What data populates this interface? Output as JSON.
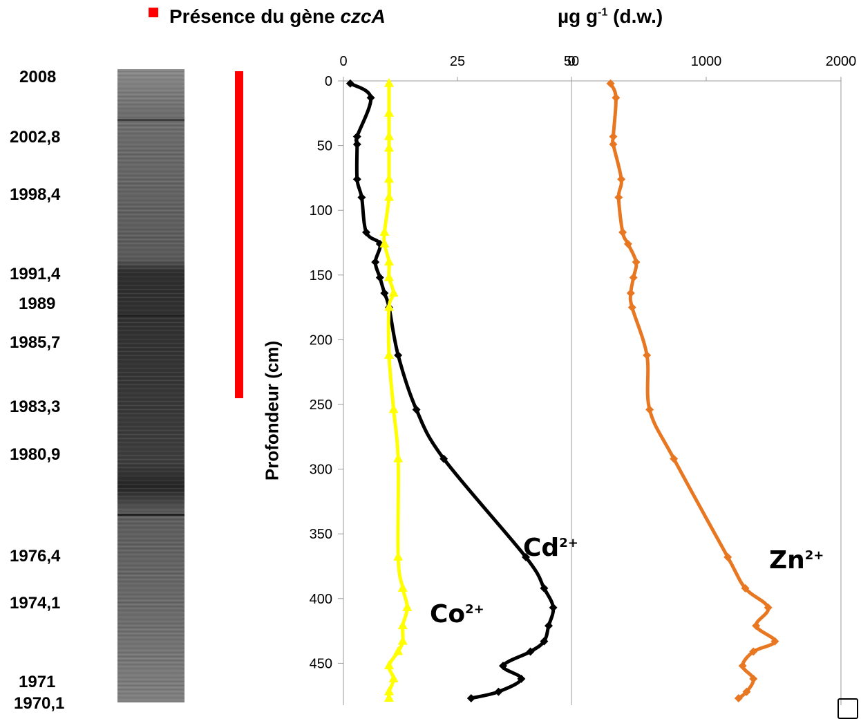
{
  "legend": {
    "label_prefix": "Présence du  gène ",
    "label_gene": "czcA",
    "color": "#ff0000"
  },
  "units": {
    "prefix": "µg g",
    "sup": "-1",
    "suffix": " (d.w.)"
  },
  "core_years": [
    "2008",
    "2002,8",
    "1998,4",
    "1991,4",
    "1989",
    "1985,7",
    "1983,3",
    "1980,9",
    "1976,4",
    "1974,1",
    "1971",
    "1970,1"
  ],
  "presence_bar": {
    "depth_start_cm": 0,
    "depth_end_cm": 245
  },
  "series_labels": {
    "cd": {
      "base": "Cd",
      "sup": "2+"
    },
    "co": {
      "base": "Co",
      "sup": "2+"
    },
    "zn": {
      "base": "Zn",
      "sup": "2+"
    }
  },
  "chart_data": [
    {
      "type": "line",
      "title": "",
      "xlabel": "",
      "ylabel": "Profondeur (cm)",
      "xlim": [
        0,
        50
      ],
      "ylim": [
        480,
        0
      ],
      "x_ticks": [
        "0",
        "25",
        "0"
      ],
      "y_ticks": [
        "0",
        "50",
        "100",
        "150",
        "200",
        "250",
        "300",
        "350",
        "400",
        "450"
      ],
      "grid": false,
      "series": [
        {
          "name": "Cd2+",
          "color": "#000000",
          "marker": "diamond",
          "points": [
            [
              1.5,
              2
            ],
            [
              6,
              13
            ],
            [
              3,
              43
            ],
            [
              3,
              49
            ],
            [
              3,
              76
            ],
            [
              4,
              90
            ],
            [
              5,
              117
            ],
            [
              8,
              126
            ],
            [
              7,
              140
            ],
            [
              8,
              152
            ],
            [
              9,
              164
            ],
            [
              10,
              175
            ],
            [
              12,
              212
            ],
            [
              16,
              254
            ],
            [
              22,
              292
            ],
            [
              40,
              368
            ],
            [
              44,
              392
            ],
            [
              46,
              407
            ],
            [
              45,
              421
            ],
            [
              44,
              433
            ],
            [
              41,
              441
            ],
            [
              35,
              452
            ],
            [
              39,
              462
            ],
            [
              34,
              472
            ],
            [
              28,
              477
            ]
          ]
        },
        {
          "name": "Co2+",
          "color": "#ffff00",
          "marker": "triangle",
          "points": [
            [
              10,
              2
            ],
            [
              10,
              25
            ],
            [
              10,
              43
            ],
            [
              10,
              52
            ],
            [
              10,
              76
            ],
            [
              10,
              90
            ],
            [
              9,
              117
            ],
            [
              9,
              126
            ],
            [
              10,
              140
            ],
            [
              10,
              152
            ],
            [
              11,
              164
            ],
            [
              10,
              175
            ],
            [
              10,
              212
            ],
            [
              11,
              254
            ],
            [
              12,
              292
            ],
            [
              12,
              368
            ],
            [
              13,
              392
            ],
            [
              14,
              407
            ],
            [
              13,
              421
            ],
            [
              13,
              433
            ],
            [
              12,
              441
            ],
            [
              10,
              452
            ],
            [
              11,
              462
            ],
            [
              10,
              472
            ],
            [
              10,
              477
            ]
          ]
        }
      ]
    },
    {
      "type": "line",
      "title": "",
      "xlabel": "",
      "ylabel": "",
      "xlim": [
        0,
        2000
      ],
      "ylim": [
        480,
        0
      ],
      "x_ticks": [
        "50",
        "1000",
        "2000"
      ],
      "grid": false,
      "series": [
        {
          "name": "Zn2+",
          "color": "#e87722",
          "marker": "diamond",
          "points": [
            [
              290,
              2
            ],
            [
              330,
              13
            ],
            [
              310,
              43
            ],
            [
              310,
              49
            ],
            [
              370,
              76
            ],
            [
              350,
              90
            ],
            [
              380,
              117
            ],
            [
              420,
              126
            ],
            [
              480,
              140
            ],
            [
              460,
              152
            ],
            [
              440,
              164
            ],
            [
              450,
              175
            ],
            [
              560,
              212
            ],
            [
              580,
              254
            ],
            [
              760,
              292
            ],
            [
              1160,
              368
            ],
            [
              1290,
              392
            ],
            [
              1460,
              407
            ],
            [
              1370,
              421
            ],
            [
              1510,
              433
            ],
            [
              1350,
              441
            ],
            [
              1270,
              452
            ],
            [
              1350,
              462
            ],
            [
              1300,
              472
            ],
            [
              1240,
              477
            ]
          ]
        }
      ]
    }
  ]
}
